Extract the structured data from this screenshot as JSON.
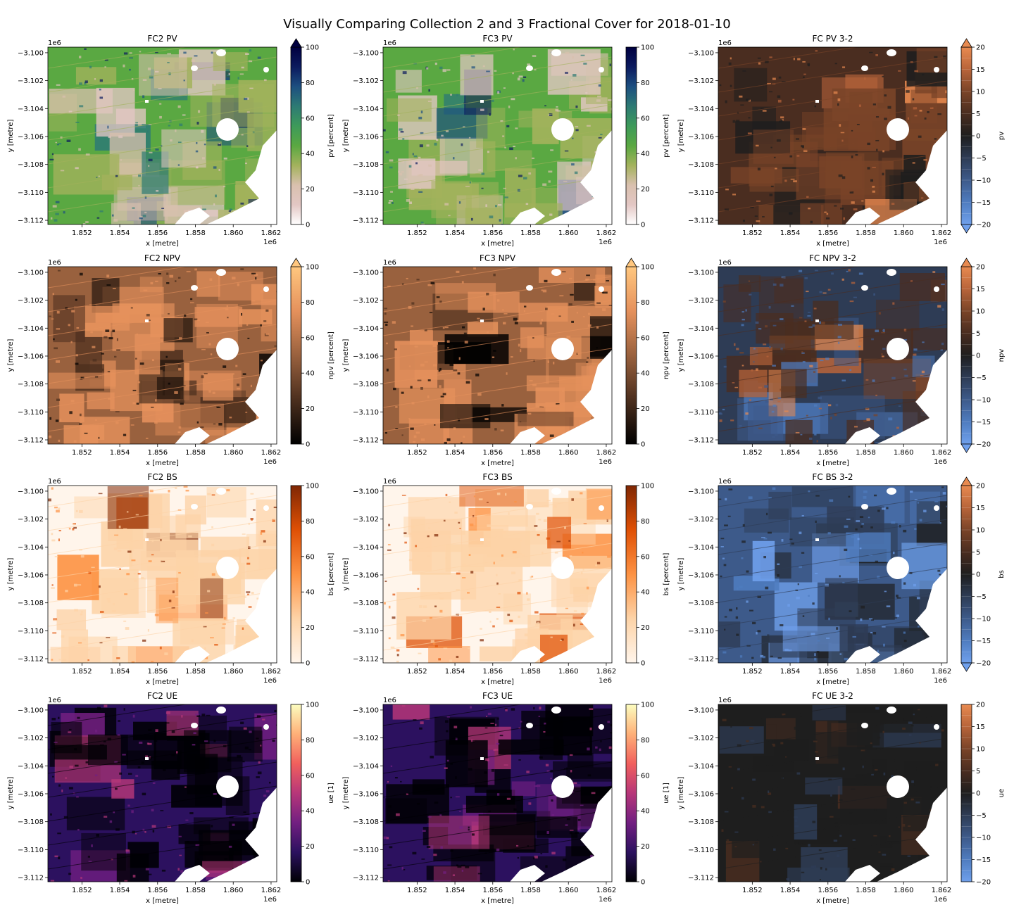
{
  "figure": {
    "title": "Visually Comparing Collection 2 and 3 Fractional Cover for 2018-01-10"
  },
  "chart_data": [
    {
      "type": "heatmap",
      "title": "FC2 PV",
      "xlabel": "x [metre]",
      "ylabel": "y [metre]",
      "x_ticks": [
        "1.852",
        "1.854",
        "1.856",
        "1.858",
        "1.860",
        "1.862"
      ],
      "x_offset": "1e6",
      "y_ticks": [
        "−3.100",
        "−3.102",
        "−3.104",
        "−3.106",
        "−3.108",
        "−3.110",
        "−3.112"
      ],
      "y_offset": "1e6",
      "colorbar": {
        "label": "pv [percent]",
        "range": [
          0,
          100
        ],
        "ticks": [
          "0",
          "20",
          "40",
          "60",
          "80",
          "100"
        ],
        "extend": "max",
        "cmap": "gist_earth_r",
        "colors": [
          "#ffffff",
          "#e3c7c4",
          "#d9c0ae",
          "#a3b25c",
          "#5aa842",
          "#3d9a5a",
          "#2d7a74",
          "#1d4f80",
          "#0b1a5e",
          "#000040"
        ]
      }
    },
    {
      "type": "heatmap",
      "title": "FC3 PV",
      "xlabel": "x [metre]",
      "ylabel": "y [metre]",
      "x_ticks": [
        "1.852",
        "1.854",
        "1.856",
        "1.858",
        "1.860",
        "1.862"
      ],
      "x_offset": "1e6",
      "y_ticks": [
        "−3.100",
        "−3.102",
        "−3.104",
        "−3.106",
        "−3.108",
        "−3.110",
        "−3.112"
      ],
      "y_offset": "1e6",
      "colorbar": {
        "label": "pv [percent]",
        "range": [
          0,
          100
        ],
        "ticks": [
          "0",
          "20",
          "40",
          "60",
          "80",
          "100"
        ],
        "extend": "none",
        "cmap": "gist_earth_r",
        "colors": [
          "#ffffff",
          "#e3c7c4",
          "#d9c0ae",
          "#a3b25c",
          "#5aa842",
          "#3d9a5a",
          "#2d7a74",
          "#1d4f80",
          "#0b1a5e",
          "#000040"
        ]
      }
    },
    {
      "type": "heatmap",
      "title": "FC PV 3-2",
      "xlabel": "x [metre]",
      "ylabel": "y [metre]",
      "x_ticks": [
        "1.852",
        "1.854",
        "1.856",
        "1.858",
        "1.860",
        "1.862"
      ],
      "x_offset": "1e6",
      "y_ticks": [
        "−3.100",
        "−3.102",
        "−3.104",
        "−3.106",
        "−3.108",
        "−3.110",
        "−3.112"
      ],
      "y_offset": "1e6",
      "colorbar": {
        "label": "pv",
        "range": [
          -20,
          20
        ],
        "ticks": [
          "−20",
          "−15",
          "−10",
          "−5",
          "0",
          "5",
          "10",
          "15",
          "20"
        ],
        "extend": "both",
        "discrete_levels": 16,
        "cmap": "berlin-like diverging",
        "colors": [
          "#6fa0ec",
          "#4f7cbf",
          "#3d5a8a",
          "#2e3c55",
          "#1e1e1e",
          "#4a2d20",
          "#7a4428",
          "#b8643a",
          "#e88a50"
        ]
      }
    },
    {
      "type": "heatmap",
      "title": "FC2 NPV",
      "xlabel": "x [metre]",
      "ylabel": "y [metre]",
      "x_ticks": [
        "1.852",
        "1.854",
        "1.856",
        "1.858",
        "1.860",
        "1.862"
      ],
      "x_offset": "1e6",
      "y_ticks": [
        "−3.100",
        "−3.102",
        "−3.104",
        "−3.106",
        "−3.108",
        "−3.110",
        "−3.112"
      ],
      "y_offset": "1e6",
      "colorbar": {
        "label": "npv [percent]",
        "range": [
          0,
          100
        ],
        "ticks": [
          "0",
          "20",
          "40",
          "60",
          "80",
          "100"
        ],
        "extend": "max",
        "cmap": "copper",
        "colors": [
          "#000000",
          "#4c2f1e",
          "#99613e",
          "#e5915c",
          "#ffc77f"
        ]
      }
    },
    {
      "type": "heatmap",
      "title": "FC3 NPV",
      "xlabel": "x [metre]",
      "ylabel": "y [metre]",
      "x_ticks": [
        "1.852",
        "1.854",
        "1.856",
        "1.858",
        "1.860",
        "1.862"
      ],
      "x_offset": "1e6",
      "y_ticks": [
        "−3.100",
        "−3.102",
        "−3.104",
        "−3.106",
        "−3.108",
        "−3.110",
        "−3.112"
      ],
      "y_offset": "1e6",
      "colorbar": {
        "label": "npv [percent]",
        "range": [
          0,
          100
        ],
        "ticks": [
          "0",
          "20",
          "40",
          "60",
          "80",
          "100"
        ],
        "extend": "max",
        "cmap": "copper",
        "colors": [
          "#000000",
          "#4c2f1e",
          "#99613e",
          "#e5915c",
          "#ffc77f"
        ]
      }
    },
    {
      "type": "heatmap",
      "title": "FC NPV 3-2",
      "xlabel": "x [metre]",
      "ylabel": "y [metre]",
      "x_ticks": [
        "1.852",
        "1.854",
        "1.856",
        "1.858",
        "1.860",
        "1.862"
      ],
      "x_offset": "1e6",
      "y_ticks": [
        "−3.100",
        "−3.102",
        "−3.104",
        "−3.106",
        "−3.108",
        "−3.110",
        "−3.112"
      ],
      "y_offset": "1e6",
      "colorbar": {
        "label": "npv",
        "range": [
          -20,
          20
        ],
        "ticks": [
          "−20",
          "−15",
          "−10",
          "−5",
          "0",
          "5",
          "10",
          "15",
          "20"
        ],
        "extend": "both",
        "discrete_levels": 16,
        "cmap": "berlin-like diverging",
        "colors": [
          "#6fa0ec",
          "#4f7cbf",
          "#3d5a8a",
          "#2e3c55",
          "#1e1e1e",
          "#4a2d20",
          "#7a4428",
          "#b8643a",
          "#e88a50"
        ]
      }
    },
    {
      "type": "heatmap",
      "title": "FC2 BS",
      "xlabel": "x [metre]",
      "ylabel": "y [metre]",
      "x_ticks": [
        "1.852",
        "1.854",
        "1.856",
        "1.858",
        "1.860",
        "1.862"
      ],
      "x_offset": "1e6",
      "y_ticks": [
        "−3.100",
        "−3.102",
        "−3.104",
        "−3.106",
        "−3.108",
        "−3.110",
        "−3.112"
      ],
      "y_offset": "1e6",
      "colorbar": {
        "label": "bs [percent]",
        "range": [
          0,
          100
        ],
        "ticks": [
          "0",
          "20",
          "40",
          "60",
          "80",
          "100"
        ],
        "extend": "none",
        "cmap": "Oranges",
        "colors": [
          "#fff5eb",
          "#fdd3a7",
          "#fd9243",
          "#df5005",
          "#7f2704"
        ]
      }
    },
    {
      "type": "heatmap",
      "title": "FC3 BS",
      "xlabel": "x [metre]",
      "ylabel": "y [metre]",
      "x_ticks": [
        "1.852",
        "1.854",
        "1.856",
        "1.858",
        "1.860",
        "1.862"
      ],
      "x_offset": "1e6",
      "y_ticks": [
        "−3.100",
        "−3.102",
        "−3.104",
        "−3.106",
        "−3.108",
        "−3.110",
        "−3.112"
      ],
      "y_offset": "1e6",
      "colorbar": {
        "label": "bs [percent]",
        "range": [
          0,
          100
        ],
        "ticks": [
          "0",
          "20",
          "40",
          "60",
          "80",
          "100"
        ],
        "extend": "none",
        "cmap": "Oranges",
        "colors": [
          "#fff5eb",
          "#fdd3a7",
          "#fd9243",
          "#df5005",
          "#7f2704"
        ]
      }
    },
    {
      "type": "heatmap",
      "title": "FC BS 3-2",
      "xlabel": "x [metre]",
      "ylabel": "y [metre]",
      "x_ticks": [
        "1.852",
        "1.854",
        "1.856",
        "1.858",
        "1.860",
        "1.862"
      ],
      "x_offset": "1e6",
      "y_ticks": [
        "−3.100",
        "−3.102",
        "−3.104",
        "−3.106",
        "−3.108",
        "−3.110",
        "−3.112"
      ],
      "y_offset": "1e6",
      "colorbar": {
        "label": "bs",
        "range": [
          -20,
          20
        ],
        "ticks": [
          "−20",
          "−15",
          "−10",
          "−5",
          "0",
          "5",
          "10",
          "15",
          "20"
        ],
        "extend": "both",
        "discrete_levels": 16,
        "cmap": "berlin-like diverging",
        "colors": [
          "#6fa0ec",
          "#4f7cbf",
          "#3d5a8a",
          "#2e3c55",
          "#1e1e1e",
          "#4a2d20",
          "#7a4428",
          "#b8643a",
          "#e88a50"
        ]
      }
    },
    {
      "type": "heatmap",
      "title": "FC2 UE",
      "xlabel": "x [metre]",
      "ylabel": "y [metre]",
      "x_ticks": [
        "1.852",
        "1.854",
        "1.856",
        "1.858",
        "1.860",
        "1.862"
      ],
      "x_offset": "1e6",
      "y_ticks": [
        "−3.100",
        "−3.102",
        "−3.104",
        "−3.106",
        "−3.108",
        "−3.110",
        "−3.112"
      ],
      "y_offset": "1e6",
      "colorbar": {
        "label": "ue [1]",
        "range": [
          0,
          100
        ],
        "ticks": [
          "0",
          "20",
          "40",
          "60",
          "80",
          "100"
        ],
        "extend": "none",
        "cmap": "magma",
        "colors": [
          "#000004",
          "#2c115f",
          "#721f81",
          "#b73779",
          "#f1605d",
          "#feb078",
          "#fcfdbf"
        ]
      }
    },
    {
      "type": "heatmap",
      "title": "FC3 UE",
      "xlabel": "x [metre]",
      "ylabel": "y [metre]",
      "x_ticks": [
        "1.852",
        "1.854",
        "1.856",
        "1.858",
        "1.860",
        "1.862"
      ],
      "x_offset": "1e6",
      "y_ticks": [
        "−3.100",
        "−3.102",
        "−3.104",
        "−3.106",
        "−3.108",
        "−3.110",
        "−3.112"
      ],
      "y_offset": "1e6",
      "colorbar": {
        "label": "ue [1]",
        "range": [
          0,
          100
        ],
        "ticks": [
          "0",
          "20",
          "40",
          "60",
          "80",
          "100"
        ],
        "extend": "none",
        "cmap": "magma",
        "colors": [
          "#000004",
          "#2c115f",
          "#721f81",
          "#b73779",
          "#f1605d",
          "#feb078",
          "#fcfdbf"
        ]
      }
    },
    {
      "type": "heatmap",
      "title": "FC UE 3-2",
      "xlabel": "x [metre]",
      "ylabel": "y [metre]",
      "x_ticks": [
        "1.852",
        "1.854",
        "1.856",
        "1.858",
        "1.860",
        "1.862"
      ],
      "x_offset": "1e6",
      "y_ticks": [
        "−3.100",
        "−3.102",
        "−3.104",
        "−3.106",
        "−3.108",
        "−3.110",
        "−3.112"
      ],
      "y_offset": "1e6",
      "colorbar": {
        "label": "ue",
        "range": [
          -20,
          20
        ],
        "ticks": [
          "−20",
          "−15",
          "−10",
          "−5",
          "0",
          "5",
          "10",
          "15",
          "20"
        ],
        "extend": "none",
        "discrete_levels": 16,
        "cmap": "berlin-like diverging",
        "colors": [
          "#6fa0ec",
          "#4f7cbf",
          "#3d5a8a",
          "#2e3c55",
          "#1e1e1e",
          "#4a2d20",
          "#7a4428",
          "#b8643a",
          "#e88a50"
        ]
      }
    }
  ]
}
